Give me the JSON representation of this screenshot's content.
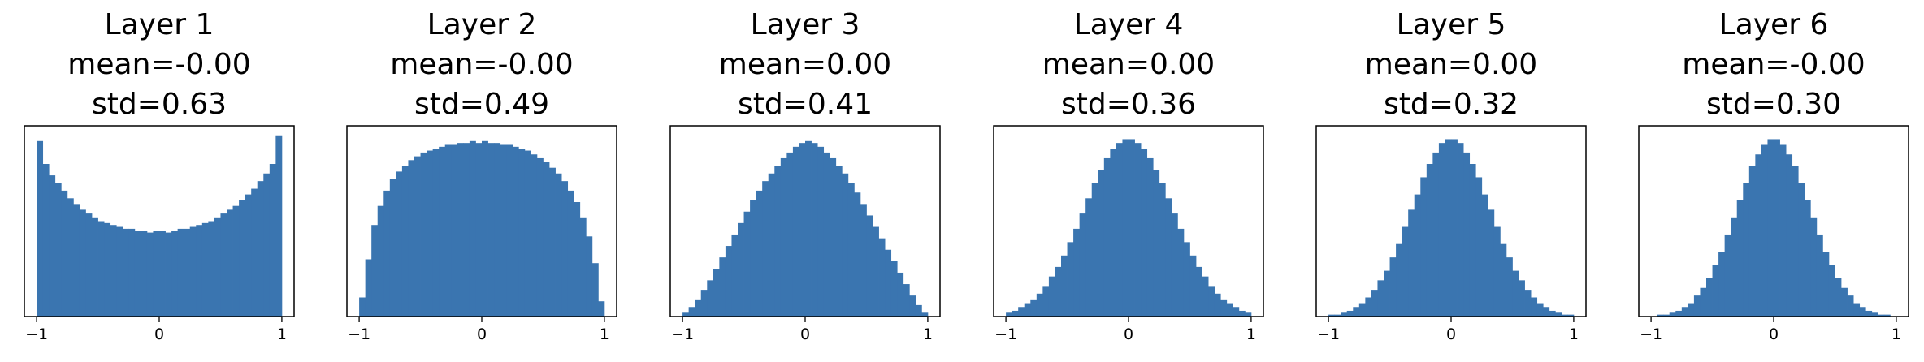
{
  "chart_data": [
    {
      "type": "histogram",
      "title": "Layer 1",
      "annotations": [
        "mean=-0.00",
        "std=0.63"
      ],
      "color": "#3a75b0",
      "bins": [
        -1,
        -0.95,
        -0.9,
        -0.85,
        -0.8,
        -0.75,
        -0.7,
        -0.65,
        -0.6,
        -0.55,
        -0.5,
        -0.45,
        -0.4,
        -0.35,
        -0.3,
        -0.25,
        -0.2,
        -0.15,
        -0.1,
        -0.05,
        0,
        0.05,
        0.1,
        0.15,
        0.2,
        0.25,
        0.3,
        0.35,
        0.4,
        0.45,
        0.5,
        0.55,
        0.6,
        0.65,
        0.7,
        0.75,
        0.8,
        0.85,
        0.9,
        0.95,
        1
      ],
      "values": [
        92,
        80,
        74,
        70,
        66,
        62,
        59,
        56,
        54,
        52,
        50,
        49,
        48,
        47,
        46,
        46,
        45,
        45,
        44,
        45,
        45,
        44,
        45,
        46,
        46,
        47,
        48,
        49,
        50,
        52,
        54,
        56,
        58,
        61,
        64,
        67,
        71,
        75,
        80,
        95
      ],
      "xlim": [
        -1.1,
        1.1
      ],
      "ylim": [
        0,
        100
      ],
      "xticks": [
        {
          "value": -1,
          "label": "−1"
        },
        0,
        1
      ]
    },
    {
      "type": "histogram",
      "title": "Layer 2",
      "annotations": [
        "mean=-0.00",
        "std=0.49"
      ],
      "color": "#3a75b0",
      "bins": [
        -1,
        -0.95,
        -0.9,
        -0.85,
        -0.8,
        -0.75,
        -0.7,
        -0.65,
        -0.6,
        -0.55,
        -0.5,
        -0.45,
        -0.4,
        -0.35,
        -0.3,
        -0.25,
        -0.2,
        -0.15,
        -0.1,
        -0.05,
        0,
        0.05,
        0.1,
        0.15,
        0.2,
        0.25,
        0.3,
        0.35,
        0.4,
        0.45,
        0.5,
        0.55,
        0.6,
        0.65,
        0.7,
        0.75,
        0.8,
        0.85,
        0.9,
        0.95,
        1
      ],
      "values": [
        10,
        30,
        48,
        58,
        66,
        72,
        76,
        79,
        82,
        84,
        86,
        87,
        88,
        89,
        90,
        90,
        91,
        91,
        92,
        91,
        92,
        91,
        91,
        90,
        90,
        89,
        88,
        87,
        85,
        83,
        81,
        78,
        75,
        71,
        66,
        60,
        52,
        42,
        28,
        8
      ],
      "xlim": [
        -1.1,
        1.1
      ],
      "ylim": [
        0,
        100
      ],
      "xticks": [
        {
          "value": -1,
          "label": "−1"
        },
        0,
        1
      ]
    },
    {
      "type": "histogram",
      "title": "Layer 3",
      "annotations": [
        "mean=0.00",
        "std=0.41"
      ],
      "color": "#3a75b0",
      "bins": [
        -1,
        -0.95,
        -0.9,
        -0.85,
        -0.8,
        -0.75,
        -0.7,
        -0.65,
        -0.6,
        -0.55,
        -0.5,
        -0.45,
        -0.4,
        -0.35,
        -0.3,
        -0.25,
        -0.2,
        -0.15,
        -0.1,
        -0.05,
        0,
        0.05,
        0.1,
        0.15,
        0.2,
        0.25,
        0.3,
        0.35,
        0.4,
        0.45,
        0.5,
        0.55,
        0.6,
        0.65,
        0.7,
        0.75,
        0.8,
        0.85,
        0.9,
        0.95,
        1
      ],
      "values": [
        2,
        5,
        9,
        14,
        19,
        25,
        31,
        37,
        43,
        49,
        55,
        61,
        66,
        71,
        75,
        79,
        83,
        86,
        89,
        91,
        92,
        91,
        89,
        86,
        83,
        79,
        75,
        70,
        65,
        59,
        53,
        47,
        41,
        35,
        29,
        23,
        17,
        11,
        6,
        2
      ],
      "xlim": [
        -1.1,
        1.1
      ],
      "ylim": [
        0,
        100
      ],
      "xticks": [
        {
          "value": -1,
          "label": "−1"
        },
        0,
        1
      ]
    },
    {
      "type": "histogram",
      "title": "Layer 4",
      "annotations": [
        "mean=0.00",
        "std=0.36"
      ],
      "color": "#3a75b0",
      "bins": [
        -1,
        -0.95,
        -0.9,
        -0.85,
        -0.8,
        -0.75,
        -0.7,
        -0.65,
        -0.6,
        -0.55,
        -0.5,
        -0.45,
        -0.4,
        -0.35,
        -0.3,
        -0.25,
        -0.2,
        -0.15,
        -0.1,
        -0.05,
        0,
        0.05,
        0.1,
        0.15,
        0.2,
        0.25,
        0.3,
        0.35,
        0.4,
        0.45,
        0.5,
        0.55,
        0.6,
        0.65,
        0.7,
        0.75,
        0.8,
        0.85,
        0.9,
        0.95,
        1
      ],
      "values": [
        2,
        3,
        5,
        7,
        9,
        12,
        16,
        21,
        26,
        32,
        39,
        46,
        54,
        62,
        70,
        77,
        83,
        88,
        91,
        93,
        93,
        91,
        88,
        83,
        77,
        70,
        62,
        54,
        46,
        39,
        32,
        26,
        21,
        16,
        12,
        9,
        7,
        5,
        3,
        2
      ],
      "xlim": [
        -1.1,
        1.1
      ],
      "ylim": [
        0,
        100
      ],
      "xticks": [
        {
          "value": -1,
          "label": "−1"
        },
        0,
        1
      ]
    },
    {
      "type": "histogram",
      "title": "Layer 5",
      "annotations": [
        "mean=0.00",
        "std=0.32"
      ],
      "color": "#3a75b0",
      "bins": [
        -1,
        -0.95,
        -0.9,
        -0.85,
        -0.8,
        -0.75,
        -0.7,
        -0.65,
        -0.6,
        -0.55,
        -0.5,
        -0.45,
        -0.4,
        -0.35,
        -0.3,
        -0.25,
        -0.2,
        -0.15,
        -0.1,
        -0.05,
        0,
        0.05,
        0.1,
        0.15,
        0.2,
        0.25,
        0.3,
        0.35,
        0.4,
        0.45,
        0.5,
        0.55,
        0.6,
        0.65,
        0.7,
        0.75,
        0.8,
        0.85,
        0.9,
        0.95,
        1
      ],
      "values": [
        1,
        1,
        2,
        3,
        5,
        7,
        10,
        14,
        19,
        24,
        31,
        38,
        47,
        56,
        64,
        73,
        80,
        86,
        91,
        93,
        93,
        91,
        86,
        80,
        73,
        64,
        56,
        47,
        38,
        31,
        24,
        19,
        14,
        10,
        7,
        5,
        3,
        2,
        1,
        1
      ],
      "xlim": [
        -1.1,
        1.1
      ],
      "ylim": [
        0,
        100
      ],
      "xticks": [
        {
          "value": -1,
          "label": "−1"
        },
        0,
        1
      ]
    },
    {
      "type": "histogram",
      "title": "Layer 6",
      "annotations": [
        "mean=-0.00",
        "std=0.30"
      ],
      "color": "#3a75b0",
      "bins": [
        -1,
        -0.95,
        -0.9,
        -0.85,
        -0.8,
        -0.75,
        -0.7,
        -0.65,
        -0.6,
        -0.55,
        -0.5,
        -0.45,
        -0.4,
        -0.35,
        -0.3,
        -0.25,
        -0.2,
        -0.15,
        -0.1,
        -0.05,
        0,
        0.05,
        0.1,
        0.15,
        0.2,
        0.25,
        0.3,
        0.35,
        0.4,
        0.45,
        0.5,
        0.55,
        0.6,
        0.65,
        0.7,
        0.75,
        0.8,
        0.85,
        0.9,
        0.95,
        1
      ],
      "values": [
        0,
        1,
        1,
        2,
        3,
        5,
        7,
        11,
        15,
        20,
        27,
        34,
        43,
        52,
        61,
        70,
        79,
        85,
        90,
        93,
        93,
        90,
        85,
        79,
        70,
        61,
        52,
        43,
        34,
        27,
        20,
        15,
        11,
        7,
        5,
        3,
        2,
        1,
        1,
        0
      ],
      "xlim": [
        -1.1,
        1.1
      ],
      "ylim": [
        0,
        100
      ],
      "xticks": [
        {
          "value": -1,
          "label": "−1"
        },
        0,
        1
      ]
    }
  ]
}
